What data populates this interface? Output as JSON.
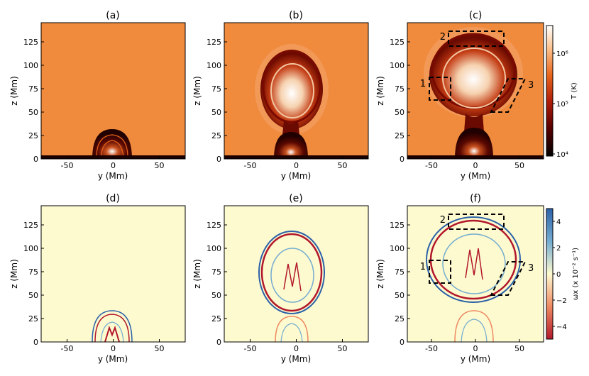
{
  "chart_data": [
    {
      "type": "heatmap",
      "title": "(a)",
      "quantity": "temperature",
      "xlabel": "y (Mm)",
      "ylabel": "z (Mm)",
      "xlim": [
        -78,
        78
      ],
      "ylim": [
        0,
        146
      ],
      "xticks": [
        "-50",
        "0",
        "50"
      ],
      "yticks": [
        "0",
        "25",
        "50",
        "75",
        "100",
        "125"
      ],
      "background_color": "#f08a3c",
      "features": [
        {
          "kind": "dome",
          "center_y": 0,
          "radius": 22,
          "peak_z": 32
        }
      ]
    },
    {
      "type": "heatmap",
      "title": "(b)",
      "quantity": "temperature",
      "xlabel": "y (Mm)",
      "ylabel": "z (Mm)",
      "xlim": [
        -78,
        78
      ],
      "ylim": [
        0,
        146
      ],
      "xticks": [
        "-50",
        "0",
        "50"
      ],
      "yticks": [
        "0",
        "25",
        "50",
        "75",
        "100",
        "125"
      ],
      "background_color": "#f08a3c",
      "features": [
        {
          "kind": "bubble",
          "center_y": -5,
          "center_z": 80,
          "half_width": 38,
          "half_height": 45
        },
        {
          "kind": "dome",
          "center_y": 0,
          "radius": 24,
          "peak_z": 30
        }
      ]
    },
    {
      "type": "heatmap",
      "title": "(c)",
      "quantity": "temperature",
      "xlabel": "y (Mm)",
      "ylabel": "z (Mm)",
      "xlim": [
        -78,
        78
      ],
      "ylim": [
        0,
        146
      ],
      "xticks": [
        "-50",
        "0",
        "50"
      ],
      "yticks": [
        "0",
        "25",
        "50",
        "75",
        "100",
        "125"
      ],
      "background_color": "#f08a3c",
      "colorbar": {
        "label": "T (K)",
        "scale": "log",
        "range": [
          10000,
          2500000
        ],
        "ticks": [
          "10⁴",
          "10⁵",
          "10⁶"
        ]
      },
      "regions": [
        {
          "label": "1",
          "y": [
            -52,
            -28
          ],
          "z": [
            62,
            88
          ]
        },
        {
          "label": "2",
          "y": [
            -30,
            30
          ],
          "z": [
            122,
            140
          ]
        },
        {
          "label": "3",
          "y": [
            15,
            55
          ],
          "z": [
            50,
            87
          ]
        }
      ],
      "features": [
        {
          "kind": "bubble",
          "center_y": -2,
          "center_z": 95,
          "half_width": 52,
          "half_height": 42
        },
        {
          "kind": "dome",
          "center_y": 0,
          "radius": 26,
          "peak_z": 35
        }
      ]
    },
    {
      "type": "heatmap",
      "title": "(d)",
      "quantity": "vorticity",
      "xlabel": "y (Mm)",
      "ylabel": "z (Mm)",
      "xlim": [
        -78,
        78
      ],
      "ylim": [
        0,
        146
      ],
      "xticks": [
        "-50",
        "0",
        "50"
      ],
      "yticks": [
        "0",
        "25",
        "50",
        "75",
        "100",
        "125"
      ],
      "background_color": "#fdfad0",
      "features": [
        {
          "kind": "dome",
          "center_y": 0,
          "radius": 22,
          "peak_z": 34
        }
      ]
    },
    {
      "type": "heatmap",
      "title": "(e)",
      "quantity": "vorticity",
      "xlabel": "y (Mm)",
      "ylabel": "z (Mm)",
      "xlim": [
        -78,
        78
      ],
      "ylim": [
        0,
        146
      ],
      "xticks": [
        "-50",
        "0",
        "50"
      ],
      "yticks": [
        "0",
        "25",
        "50",
        "75",
        "100",
        "125"
      ],
      "background_color": "#fdfad0",
      "features": [
        {
          "kind": "bubble",
          "center_y": -5,
          "center_z": 80,
          "half_width": 38,
          "half_height": 45
        },
        {
          "kind": "dome",
          "center_y": 0,
          "radius": 24,
          "peak_z": 30
        }
      ]
    },
    {
      "type": "heatmap",
      "title": "(f)",
      "quantity": "vorticity",
      "xlabel": "y (Mm)",
      "ylabel": "z (Mm)",
      "xlim": [
        -78,
        78
      ],
      "ylim": [
        0,
        146
      ],
      "xticks": [
        "-50",
        "0",
        "50"
      ],
      "yticks": [
        "0",
        "25",
        "50",
        "75",
        "100",
        "125"
      ],
      "background_color": "#fdfad0",
      "colorbar": {
        "label": "ωx (x 10⁻² s⁻¹)",
        "scale": "linear",
        "range": [
          -5,
          5
        ],
        "ticks": [
          "4",
          "2",
          "0",
          "−2",
          "−4"
        ]
      },
      "regions": [
        {
          "label": "1",
          "y": [
            -52,
            -28
          ],
          "z": [
            62,
            88
          ]
        },
        {
          "label": "2",
          "y": [
            -30,
            30
          ],
          "z": [
            122,
            140
          ]
        },
        {
          "label": "3",
          "y": [
            15,
            55
          ],
          "z": [
            50,
            87
          ]
        }
      ],
      "features": [
        {
          "kind": "bubble",
          "center_y": -2,
          "center_z": 95,
          "half_width": 52,
          "half_height": 42
        },
        {
          "kind": "dome",
          "center_y": 0,
          "radius": 26,
          "peak_z": 35
        }
      ]
    }
  ]
}
